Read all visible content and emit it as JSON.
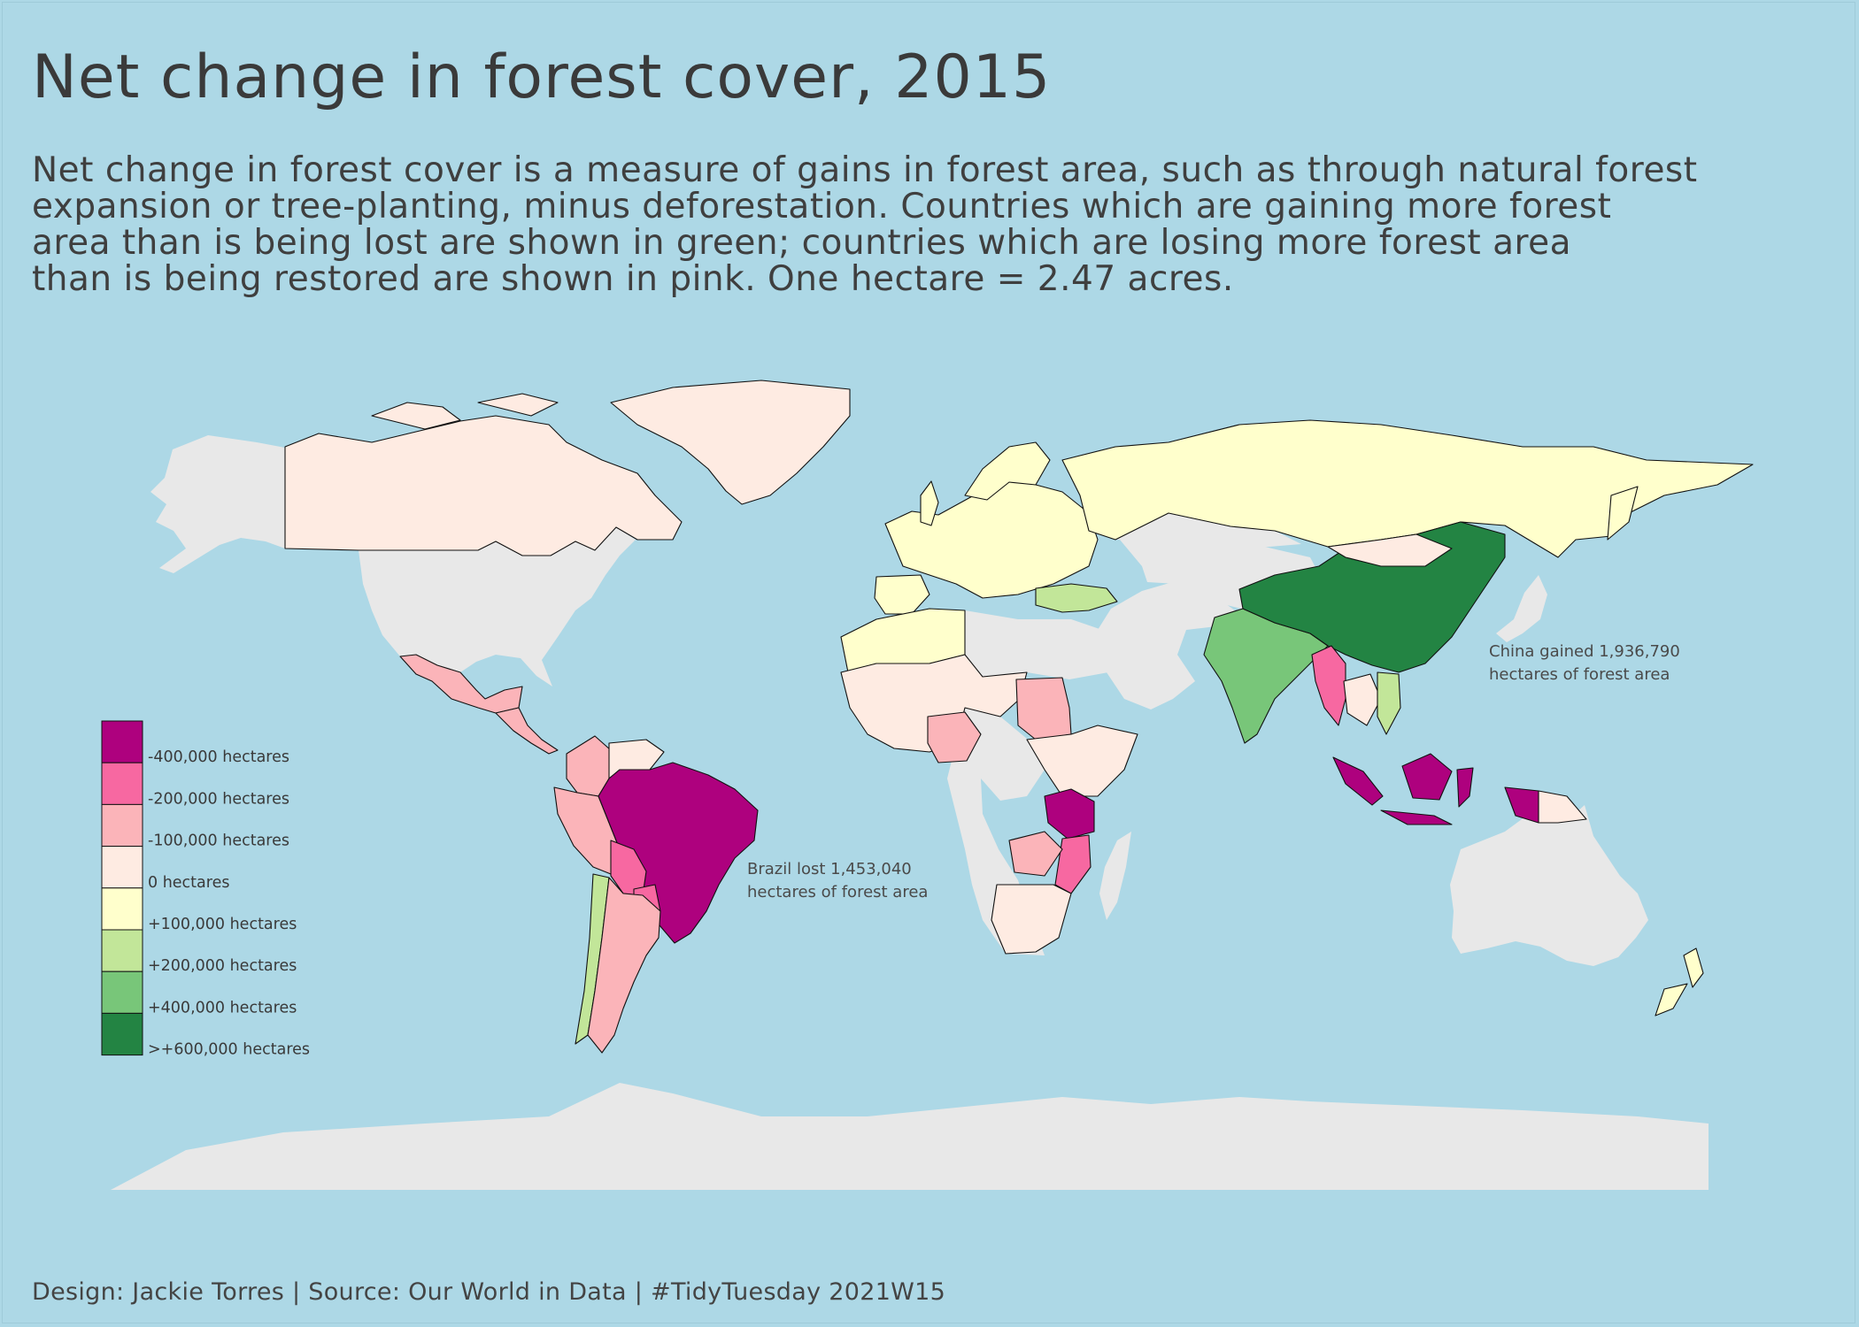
{
  "title": "Net change in forest cover, 2015",
  "subtitle_lines": [
    "Net change in forest cover is a measure of gains in forest area, such as through natural forest",
    "expansion or tree-planting, minus deforestation. Countries which are gaining more forest",
    "area than is being lost are shown in green; countries which are losing more forest area",
    "than is being restored are shown in pink. One hectare = 2.47 acres."
  ],
  "caption": "Design: Jackie Torres | Source: Our World in Data | #TidyTuesday 2021W15",
  "legend": [
    {
      "label": "-400,000 hectares",
      "color": "#ae017e"
    },
    {
      "label": "-200,000 hectares",
      "color": "#f768a1"
    },
    {
      "label": "-100,000 hectares",
      "color": "#fbb4b9"
    },
    {
      "label": "0 hectares",
      "color": "#feebe2"
    },
    {
      "label": "+100,000 hectares",
      "color": "#ffffcc"
    },
    {
      "label": "+200,000 hectares",
      "color": "#c2e699"
    },
    {
      "label": "+400,000 hectares",
      "color": "#78c679"
    },
    {
      "label": ">+600,000 hectares",
      "color": "#238443"
    }
  ],
  "annotations": {
    "china": [
      "China gained 1,936,790",
      "hectares of forest area"
    ],
    "brazil": [
      "Brazil lost 1,453,040",
      "hectares of forest area"
    ]
  },
  "colors": {
    "background": "#add8e6",
    "no_data": "#e8e8e8"
  }
}
